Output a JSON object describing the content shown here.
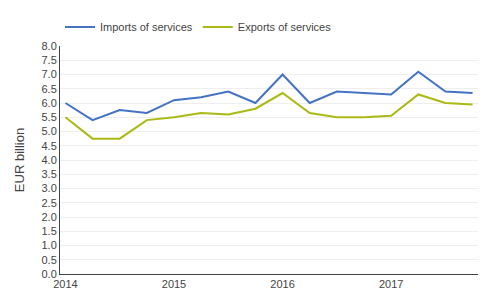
{
  "chart_data": {
    "type": "line",
    "x": [
      2014.0,
      2014.25,
      2014.5,
      2014.75,
      2015.0,
      2015.25,
      2015.5,
      2015.75,
      2016.0,
      2016.25,
      2016.5,
      2016.75,
      2017.0,
      2017.25,
      2017.5,
      2017.75
    ],
    "series": [
      {
        "name": "Imports of services",
        "color": "#4472c4",
        "values": [
          6.0,
          5.4,
          5.75,
          5.65,
          6.1,
          6.2,
          6.4,
          6.0,
          7.0,
          6.0,
          6.4,
          6.35,
          6.3,
          7.1,
          6.4,
          6.35
        ]
      },
      {
        "name": "Exports of services",
        "color": "#aab914",
        "values": [
          5.5,
          4.75,
          4.75,
          5.4,
          5.5,
          5.65,
          5.6,
          5.8,
          6.35,
          5.65,
          5.5,
          5.5,
          5.55,
          6.3,
          6.0,
          5.95
        ]
      }
    ],
    "y_label": "EUR billion",
    "xlim": [
      2013.95,
      2017.8
    ],
    "xticks": [
      2014,
      2015,
      2016,
      2017
    ],
    "ylim": [
      0,
      8
    ],
    "yticks": [
      {
        "value": 0,
        "label": "0.0"
      },
      0.5,
      {
        "value": 1,
        "label": "1.0"
      },
      1.5,
      {
        "value": 2,
        "label": "2.0"
      },
      2.5,
      {
        "value": 3,
        "label": "3.0"
      },
      3.5,
      {
        "value": 4,
        "label": "4.0"
      },
      4.5,
      {
        "value": 5,
        "label": "5.0"
      },
      5.5,
      {
        "value": 6,
        "label": "6.0"
      },
      6.5,
      {
        "value": 7,
        "label": "7.0"
      },
      7.5,
      {
        "value": 8,
        "label": "8.0"
      }
    ],
    "grid": "y",
    "legend": "upper left"
  }
}
